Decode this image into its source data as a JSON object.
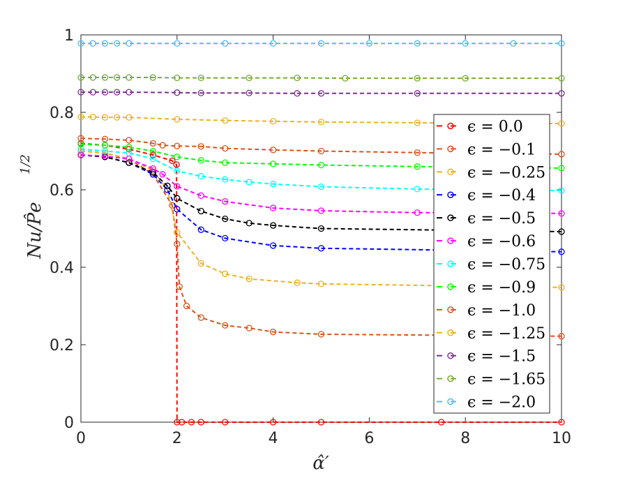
{
  "chart_data": {
    "type": "line",
    "title": "",
    "xlabel": "α̂′",
    "ylabel": "Nu/P̂e",
    "ylabel_exponent": "1/2",
    "xlim": [
      0,
      10
    ],
    "ylim": [
      0,
      1
    ],
    "xticks": [
      "0",
      "2",
      "4",
      "6",
      "8",
      "10"
    ],
    "yticks": [
      "0",
      "0.2",
      "0.4",
      "0.6",
      "0.8",
      "1"
    ],
    "legend_position": "right",
    "series": [
      {
        "name": "ϵ = 0.0",
        "color": "#FF0000",
        "x": [
          0,
          0.5,
          1,
          1.5,
          1.9,
          1.99,
          2,
          2.1,
          2.3,
          2.5,
          3,
          4,
          5,
          7.5,
          10
        ],
        "y": [
          0.72,
          0.715,
          0.705,
          0.69,
          0.675,
          0.665,
          0,
          0,
          0,
          0,
          0,
          0,
          0,
          0,
          0
        ]
      },
      {
        "name": "ϵ = −0.1",
        "color": "#D95319",
        "x": [
          0,
          0.5,
          1,
          1.5,
          1.9,
          2,
          2.05,
          2.2,
          2.5,
          3,
          3.5,
          4,
          5,
          10
        ],
        "y": [
          0.7,
          0.695,
          0.68,
          0.64,
          0.56,
          0.46,
          0.35,
          0.3,
          0.27,
          0.25,
          0.243,
          0.233,
          0.227,
          0.222
        ]
      },
      {
        "name": "ϵ = −0.25",
        "color": "#EDB120",
        "x": [
          0,
          0.5,
          1,
          1.5,
          1.8,
          2,
          2.5,
          3,
          3.5,
          4.5,
          5,
          10
        ],
        "y": [
          0.7,
          0.695,
          0.68,
          0.65,
          0.6,
          0.49,
          0.41,
          0.383,
          0.37,
          0.36,
          0.357,
          0.348
        ]
      },
      {
        "name": "ϵ = −0.4",
        "color": "#0000FF",
        "x": [
          0,
          0.5,
          1,
          1.5,
          1.8,
          2,
          2.5,
          3,
          4,
          5,
          10
        ],
        "y": [
          0.69,
          0.685,
          0.67,
          0.64,
          0.6,
          0.55,
          0.497,
          0.475,
          0.456,
          0.449,
          0.44
        ]
      },
      {
        "name": "ϵ = −0.5",
        "color": "#000000",
        "x": [
          0,
          0.5,
          1,
          1.5,
          1.8,
          2,
          2.5,
          3,
          3.5,
          4,
          5,
          10
        ],
        "y": [
          0.69,
          0.685,
          0.67,
          0.645,
          0.61,
          0.578,
          0.545,
          0.525,
          0.514,
          0.508,
          0.5,
          0.492
        ]
      },
      {
        "name": "ϵ = −0.6",
        "color": "#FF00FF",
        "x": [
          0,
          0.5,
          1,
          1.5,
          1.7,
          2,
          2.5,
          3,
          4,
          5,
          7,
          10
        ],
        "y": [
          0.69,
          0.687,
          0.68,
          0.655,
          0.64,
          0.609,
          0.585,
          0.57,
          0.553,
          0.546,
          0.541,
          0.539
        ]
      },
      {
        "name": "ϵ = −0.75",
        "color": "#00FFFF",
        "x": [
          0,
          0.5,
          1,
          1.5,
          2,
          2.5,
          3,
          3.5,
          4,
          5,
          7,
          10
        ],
        "y": [
          0.705,
          0.7,
          0.695,
          0.68,
          0.649,
          0.635,
          0.627,
          0.62,
          0.615,
          0.608,
          0.602,
          0.598
        ]
      },
      {
        "name": "ϵ = −0.9",
        "color": "#00FF00",
        "x": [
          0,
          0.5,
          1,
          1.5,
          2,
          2.5,
          3,
          4,
          5,
          7,
          10
        ],
        "y": [
          0.718,
          0.715,
          0.71,
          0.7,
          0.685,
          0.676,
          0.67,
          0.667,
          0.664,
          0.66,
          0.656
        ]
      },
      {
        "name": "ϵ = −1.0",
        "color": "#D95319",
        "x": [
          0,
          0.5,
          1,
          1.5,
          1.7,
          2,
          2.5,
          3,
          4,
          5,
          7,
          10
        ],
        "y": [
          0.733,
          0.731,
          0.728,
          0.72,
          0.715,
          0.713,
          0.712,
          0.707,
          0.703,
          0.7,
          0.696,
          0.692
        ]
      },
      {
        "name": "ϵ = −1.25",
        "color": "#EDB120",
        "x": [
          0,
          0.25,
          0.5,
          0.75,
          1,
          2,
          3,
          4,
          5,
          7,
          8,
          10
        ],
        "y": [
          0.788,
          0.788,
          0.787,
          0.787,
          0.787,
          0.782,
          0.779,
          0.777,
          0.775,
          0.773,
          0.772,
          0.771
        ]
      },
      {
        "name": "ϵ = −1.5",
        "color": "#7E2F8E",
        "x": [
          0,
          0.25,
          0.5,
          0.75,
          1,
          2,
          2.5,
          3.5,
          4.5,
          5,
          7,
          10
        ],
        "y": [
          0.852,
          0.852,
          0.852,
          0.852,
          0.852,
          0.851,
          0.85,
          0.85,
          0.849,
          0.849,
          0.849,
          0.849
        ]
      },
      {
        "name": "ϵ = −1.65",
        "color": "#77AC30",
        "x": [
          0,
          0.25,
          0.5,
          0.75,
          1,
          1.5,
          2,
          2.5,
          3.5,
          4.5,
          5.5,
          7,
          8,
          10
        ],
        "y": [
          0.89,
          0.89,
          0.89,
          0.89,
          0.89,
          0.89,
          0.889,
          0.889,
          0.889,
          0.889,
          0.888,
          0.888,
          0.888,
          0.888
        ]
      },
      {
        "name": "ϵ = −2.0",
        "color": "#4DBEEE",
        "x": [
          0,
          0.25,
          0.5,
          0.75,
          1,
          2,
          3,
          4,
          5,
          6,
          7,
          8,
          9,
          10
        ],
        "y": [
          0.978,
          0.978,
          0.978,
          0.978,
          0.978,
          0.978,
          0.978,
          0.978,
          0.978,
          0.978,
          0.978,
          0.978,
          0.978,
          0.978
        ]
      }
    ]
  }
}
